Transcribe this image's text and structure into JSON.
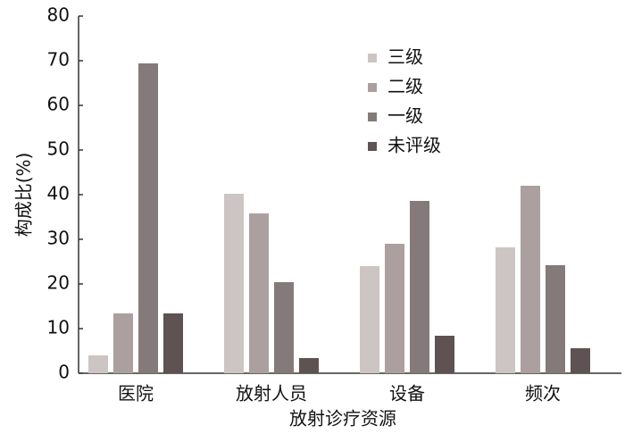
{
  "chart_data": {
    "type": "bar",
    "y_label": "构成比(%)",
    "x_label": "放射诊疗资源",
    "categories": [
      "医院",
      "放射人员",
      "设备",
      "频次"
    ],
    "series": [
      {
        "name": "三级",
        "color": "#cdc5c3",
        "values": [
          4.0,
          40.2,
          24.0,
          28.2
        ]
      },
      {
        "name": "二级",
        "color": "#ab9f9f",
        "values": [
          13.4,
          35.8,
          29.0,
          42.0
        ]
      },
      {
        "name": "一级",
        "color": "#857a7a",
        "values": [
          69.4,
          20.4,
          38.6,
          24.2
        ]
      },
      {
        "name": "未评级",
        "color": "#5e5252",
        "values": [
          13.4,
          3.4,
          8.4,
          5.6
        ]
      }
    ],
    "ylim": [
      0,
      80
    ],
    "yticks": [
      0,
      10,
      20,
      30,
      40,
      50,
      60,
      70,
      80
    ],
    "legend": "upper right"
  }
}
